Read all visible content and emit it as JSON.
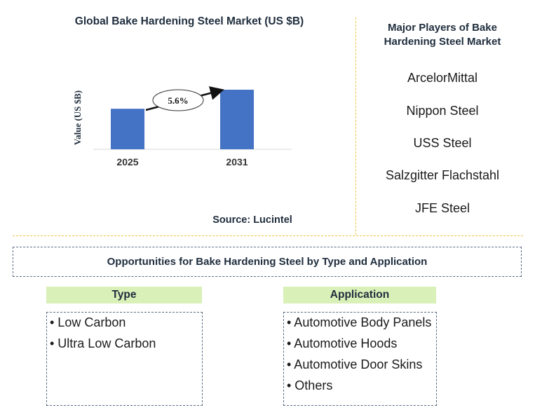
{
  "chart_data": {
    "type": "bar",
    "title": "Global Bake Hardening Steel Market (US $B)",
    "categories": [
      "2025",
      "2031"
    ],
    "values": [
      0.68,
      1.0
    ],
    "ylabel": "Value (US $B)",
    "xlabel": "",
    "annotation": "5.6%",
    "bar_color": "#4472c4",
    "source": "Source: Lucintel"
  },
  "players": {
    "title": "Major Players of Bake Hardening Steel Market",
    "items": [
      "ArcelorMittal",
      "Nippon Steel",
      "USS Steel",
      "Salzgitter Flachstahl",
      "JFE Steel"
    ]
  },
  "opportunities": {
    "title": "Opportunities for Bake Hardening Steel by Type and Application",
    "type": {
      "header": "Type",
      "items": [
        "• Low Carbon",
        "• Ultra Low Carbon"
      ]
    },
    "application": {
      "header": "Application",
      "items": [
        "• Automotive Body Panels",
        "• Automotive Hoods",
        "• Automotive Door Skins",
        "• Others"
      ]
    }
  },
  "colors": {
    "accent_divider": "#f3c242",
    "header_fill": "#d9f0b8",
    "title_text": "#1f2d3d"
  }
}
